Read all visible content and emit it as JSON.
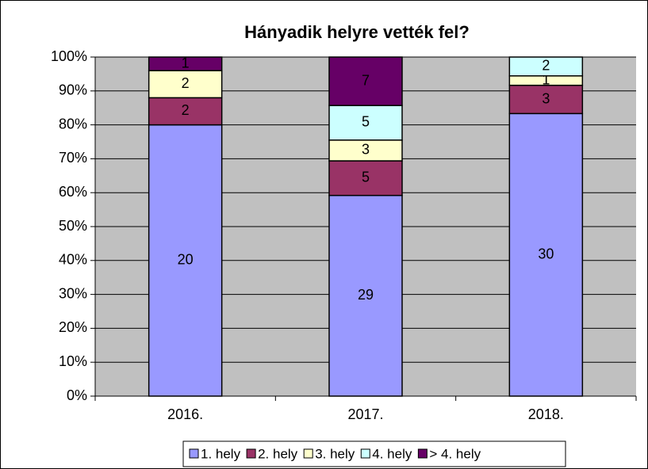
{
  "chart_data": {
    "type": "bar",
    "stacked": "percent",
    "title": "Hányadik helyre vették fel?",
    "categories": [
      "2016.",
      "2017.",
      "2018."
    ],
    "series": [
      {
        "name": "1. hely",
        "color": "#9999ff",
        "values": [
          20,
          29,
          30
        ]
      },
      {
        "name": "2. hely",
        "color": "#993366",
        "values": [
          2,
          5,
          3
        ]
      },
      {
        "name": "3. hely",
        "color": "#ffffcc",
        "values": [
          2,
          3,
          1
        ]
      },
      {
        "name": "4. hely",
        "color": "#ccffff",
        "values": [
          0,
          5,
          2
        ]
      },
      {
        "name": "> 4. hely",
        "color": "#660066",
        "values": [
          1,
          7,
          0
        ]
      }
    ],
    "ylim": [
      0,
      100
    ],
    "yticks": [
      {
        "value": 0,
        "label": "0%"
      },
      {
        "value": 10,
        "label": "10%"
      },
      {
        "value": 20,
        "label": "20%"
      },
      {
        "value": 30,
        "label": "30%"
      },
      {
        "value": 40,
        "label": "40%"
      },
      {
        "value": 50,
        "label": "50%"
      },
      {
        "value": 60,
        "label": "60%"
      },
      {
        "value": 70,
        "label": "70%"
      },
      {
        "value": 80,
        "label": "80%"
      },
      {
        "value": 90,
        "label": "90%"
      },
      {
        "value": 100,
        "label": "100%"
      }
    ],
    "grid": true,
    "plot_background": "#c0c0c0",
    "legend": "bottom"
  }
}
